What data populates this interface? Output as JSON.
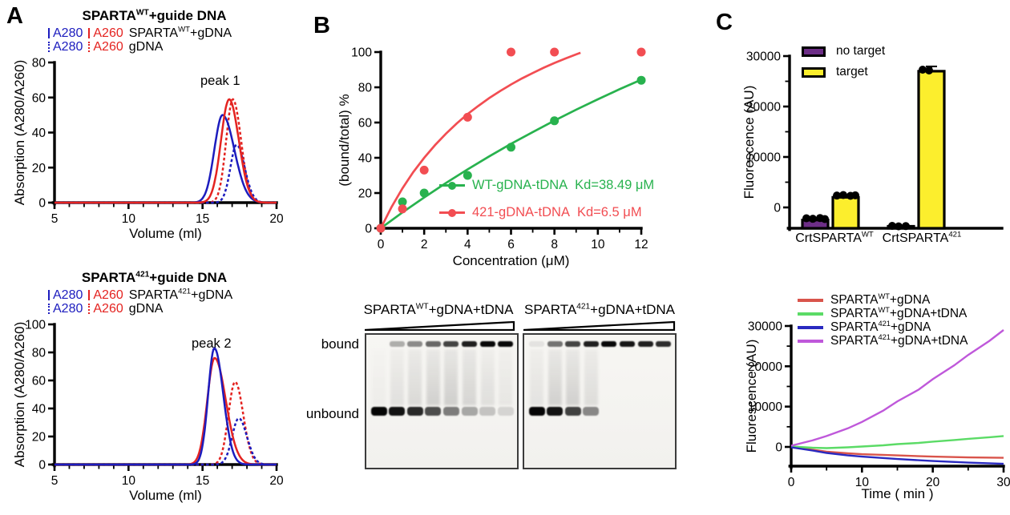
{
  "panel_labels": {
    "a": "A",
    "b": "B",
    "c": "C"
  },
  "colors": {
    "blue": "#1c1cbe",
    "red": "#e42320",
    "green": "#28b24e",
    "soft_red": "#f24d52",
    "purple": "#6d2e87",
    "yellow": "#fcee2d",
    "magenta": "#bf58da",
    "light_green": "#5bdb66",
    "muted_red": "#d9544b",
    "dark_blue": "#2929c0",
    "black": "#000000"
  },
  "chart_data": [
    {
      "id": "a1",
      "type": "line",
      "title_parts": [
        "SPARTA",
        "WT",
        "+guide DNA"
      ],
      "xlabel": "Volume (ml)",
      "ylabel": "Absorption (A280/A260)",
      "xlim": [
        5,
        20
      ],
      "ylim": [
        0,
        80
      ],
      "xticks": [
        5,
        10,
        15,
        20
      ],
      "yticks": [
        0,
        20,
        40,
        60,
        80
      ],
      "x_minor_step": 1,
      "annotation": {
        "text": "peak 1",
        "x_ml": 17.0,
        "y_val": 66
      },
      "legend_rows": [
        {
          "a280": "A280",
          "a260": "A260",
          "label": [
            "SPARTA",
            "WT",
            "+gDNA"
          ],
          "style": "solid"
        },
        {
          "a280": "A280",
          "a260": "A260",
          "label": [
            "gDNA",
            "",
            ""
          ],
          "style": "dotted"
        }
      ],
      "series": [
        {
          "name": "A260 gDNA",
          "color": "red",
          "dash": true,
          "peak_ml": 17.05,
          "height": 59,
          "sigma_left": 0.45,
          "sigma_right": 0.55
        },
        {
          "name": "A280 gDNA",
          "color": "blue",
          "dash": true,
          "peak_ml": 17.3,
          "height": 33,
          "sigma_left": 0.42,
          "sigma_right": 0.55
        },
        {
          "name": "A280 SPARTA WT+gDNA",
          "color": "blue",
          "dash": false,
          "peak_ml": 16.35,
          "height": 50,
          "sigma_left": 0.55,
          "sigma_right": 0.8
        },
        {
          "name": "A260 SPARTA WT+gDNA",
          "color": "red",
          "dash": false,
          "peak_ml": 16.8,
          "height": 59,
          "sigma_left": 0.55,
          "sigma_right": 0.65
        }
      ]
    },
    {
      "id": "a2",
      "type": "line",
      "title_parts": [
        "SPARTA",
        "421",
        "+guide DNA"
      ],
      "xlabel": "Volume (ml)",
      "ylabel": "Absorption (A280/A260)",
      "xlim": [
        5,
        20
      ],
      "ylim": [
        0,
        100
      ],
      "xticks": [
        5,
        10,
        15,
        20
      ],
      "yticks": [
        0,
        20,
        40,
        60,
        80,
        100
      ],
      "x_minor_step": 1,
      "annotation": {
        "text": "peak 2",
        "x_ml": 15.6,
        "y_val": 88
      },
      "legend_rows": [
        {
          "a280": "A280",
          "a260": "A260",
          "label": [
            "SPARTA",
            "421",
            "+gDNA"
          ],
          "style": "solid"
        },
        {
          "a280": "A280",
          "a260": "A260",
          "label": [
            "gDNA",
            "",
            ""
          ],
          "style": "dotted"
        }
      ],
      "series": [
        {
          "name": "A260 gDNA",
          "color": "red",
          "dash": true,
          "peak_ml": 17.2,
          "height": 59,
          "sigma_left": 0.45,
          "sigma_right": 0.55
        },
        {
          "name": "A280 gDNA",
          "color": "blue",
          "dash": true,
          "peak_ml": 17.45,
          "height": 33,
          "sigma_left": 0.45,
          "sigma_right": 0.55
        },
        {
          "name": "A260 SPARTA 421+gDNA",
          "color": "red",
          "dash": false,
          "peak_ml": 15.82,
          "height": 76,
          "sigma_left": 0.5,
          "sigma_right": 0.75
        },
        {
          "name": "A280 SPARTA 421+gDNA",
          "color": "blue",
          "dash": false,
          "peak_ml": 15.8,
          "height": 83,
          "sigma_left": 0.42,
          "sigma_right": 0.6
        }
      ]
    },
    {
      "id": "b_binding",
      "type": "scatter",
      "xlabel": "Concentration (μM)",
      "ylabel": "(bound/total) %",
      "xlim": [
        0,
        12
      ],
      "ylim": [
        0,
        100
      ],
      "xticks": [
        0,
        2,
        4,
        6,
        8,
        10,
        12
      ],
      "yticks": [
        0,
        20,
        40,
        60,
        80,
        100
      ],
      "x_minor_step": 1,
      "series": [
        {
          "name": "WT-gDNA-tDNA",
          "kd_label": "Kd=38.49 μM",
          "color": "green",
          "points": [
            [
              0,
              0
            ],
            [
              1,
              15
            ],
            [
              2,
              20
            ],
            [
              4,
              30
            ],
            [
              6,
              46
            ],
            [
              8,
              61
            ],
            [
              12,
              84
            ]
          ],
          "curve": [
            [
              0,
              0
            ],
            [
              1,
              9
            ],
            [
              2,
              17.5
            ],
            [
              3,
              25.7
            ],
            [
              4,
              33.4
            ],
            [
              5,
              40.8
            ],
            [
              6,
              47.9
            ],
            [
              7,
              54.6
            ],
            [
              8,
              61.1
            ],
            [
              9,
              67.3
            ],
            [
              10,
              73.2
            ],
            [
              11,
              78.9
            ],
            [
              12,
              84.3
            ]
          ]
        },
        {
          "name": "421-gDNA-tDNA",
          "kd_label": "Kd=6.5 μM",
          "color": "soft_red",
          "points": [
            [
              0,
              0
            ],
            [
              1,
              11
            ],
            [
              2,
              33
            ],
            [
              4,
              63
            ],
            [
              6,
              100
            ],
            [
              8,
              100
            ],
            [
              12,
              100
            ]
          ],
          "curve": [
            [
              0,
              0
            ],
            [
              0.5,
              12.1
            ],
            [
              1,
              22.7
            ],
            [
              1.5,
              31.9
            ],
            [
              2,
              40
            ],
            [
              2.5,
              47.2
            ],
            [
              3,
              53.7
            ],
            [
              3.5,
              59.5
            ],
            [
              4,
              64.8
            ],
            [
              4.5,
              69.5
            ],
            [
              5,
              73.9
            ],
            [
              5.5,
              77.9
            ],
            [
              6,
              81.6
            ],
            [
              6.5,
              85
            ],
            [
              7,
              88.1
            ],
            [
              7.5,
              91.1
            ],
            [
              8,
              93.8
            ],
            [
              8.5,
              96.3
            ],
            [
              9,
              98.7
            ],
            [
              9.2,
              99.6
            ]
          ]
        }
      ]
    },
    {
      "id": "c_bar",
      "type": "bar",
      "ylabel": "Fluorescence (AU)",
      "ylim": [
        -4130,
        30000
      ],
      "yticks": [
        0,
        10000,
        20000,
        30000
      ],
      "y_minor_step": 5000,
      "categories": [
        [
          "CrtSPARTA",
          "WT"
        ],
        [
          "CrtSPARTA",
          "421"
        ]
      ],
      "legend": [
        {
          "label": "no target",
          "color": "purple"
        },
        {
          "label": "target",
          "color": "yellow"
        }
      ],
      "series": [
        {
          "name": "no target",
          "color": "purple",
          "values": [
            -2500,
            -3950
          ],
          "dots": [
            [
              -2150,
              -2250,
              -2100,
              -2300
            ],
            [
              -3650,
              -3750,
              -3700
            ]
          ]
        },
        {
          "name": "target",
          "color": "yellow",
          "values": [
            2000,
            27000
          ],
          "dots": [
            [
              2350,
              2450,
              2300,
              2400
            ],
            [
              27300,
              27150
            ]
          ],
          "error_high": [
            null,
            27950
          ]
        }
      ]
    },
    {
      "id": "c_line",
      "type": "line",
      "xlabel": "Time ( min )",
      "ylabel": "Fluorescence (AU)",
      "xlim": [
        0,
        30
      ],
      "ylim": [
        -4770,
        30000
      ],
      "xticks": [
        0,
        10,
        20,
        30
      ],
      "yticks": [
        0,
        10000,
        20000,
        30000
      ],
      "x_minor_step": 5,
      "y_minor_step": 5000,
      "series": [
        {
          "label_parts": [
            "SPARTA",
            "WT",
            "+gDNA"
          ],
          "color": "muted_red",
          "points": [
            [
              0,
              100
            ],
            [
              3,
              -700
            ],
            [
              5,
              -1200
            ],
            [
              8,
              -1600
            ],
            [
              10,
              -1800
            ],
            [
              15,
              -2100
            ],
            [
              20,
              -2400
            ],
            [
              25,
              -2600
            ],
            [
              30,
              -2700
            ]
          ]
        },
        {
          "label_parts": [
            "SPARTA",
            "WT",
            "+gDNA+tDNA"
          ],
          "color": "light_green",
          "points": [
            [
              0,
              100
            ],
            [
              3,
              -200
            ],
            [
              5,
              -300
            ],
            [
              8,
              -100
            ],
            [
              10,
              100
            ],
            [
              13,
              400
            ],
            [
              15,
              700
            ],
            [
              18,
              1000
            ],
            [
              20,
              1300
            ],
            [
              23,
              1700
            ],
            [
              25,
              2000
            ],
            [
              28,
              2400
            ],
            [
              30,
              2700
            ]
          ]
        },
        {
          "label_parts": [
            "SPARTA",
            "421",
            "+gDNA"
          ],
          "color": "dark_blue",
          "points": [
            [
              0,
              -100
            ],
            [
              3,
              -900
            ],
            [
              5,
              -1500
            ],
            [
              8,
              -2100
            ],
            [
              10,
              -2400
            ],
            [
              15,
              -3000
            ],
            [
              20,
              -3500
            ],
            [
              25,
              -3900
            ],
            [
              30,
              -4200
            ]
          ]
        },
        {
          "label_parts": [
            "SPARTA",
            "421",
            "+gDNA+tDNA"
          ],
          "color": "magenta",
          "points": [
            [
              0,
              300
            ],
            [
              3,
              1600
            ],
            [
              5,
              2700
            ],
            [
              8,
              4600
            ],
            [
              10,
              6200
            ],
            [
              13,
              9000
            ],
            [
              15,
              11300
            ],
            [
              18,
              14200
            ],
            [
              20,
              16800
            ],
            [
              23,
              20200
            ],
            [
              25,
              22800
            ],
            [
              28,
              26300
            ],
            [
              30,
              29000
            ]
          ]
        }
      ]
    }
  ],
  "gels": {
    "row_labels": {
      "bound": "bound",
      "unbound": "unbound"
    },
    "panels": [
      {
        "title_parts": [
          "SPARTA",
          "WT",
          "+gDNA+tDNA"
        ],
        "bound": [
          0,
          0.3,
          0.45,
          0.6,
          0.75,
          0.9,
          1,
          1
        ],
        "unbound": [
          1,
          0.95,
          0.85,
          0.7,
          0.5,
          0.32,
          0.2,
          0.13
        ],
        "smear": [
          0.06,
          0.16,
          0.24,
          0.3,
          0.32,
          0.28,
          0.18,
          0.1
        ]
      },
      {
        "title_parts": [
          "SPARTA",
          "421",
          "+gDNA+tDNA"
        ],
        "bound": [
          0.08,
          0.55,
          0.75,
          0.9,
          1,
          0.95,
          0.9,
          0.85
        ],
        "unbound": [
          1,
          0.95,
          0.75,
          0.45,
          0,
          0,
          0,
          0
        ],
        "smear": [
          0.14,
          0.3,
          0.3,
          0.2,
          0,
          0,
          0,
          0
        ]
      }
    ]
  }
}
